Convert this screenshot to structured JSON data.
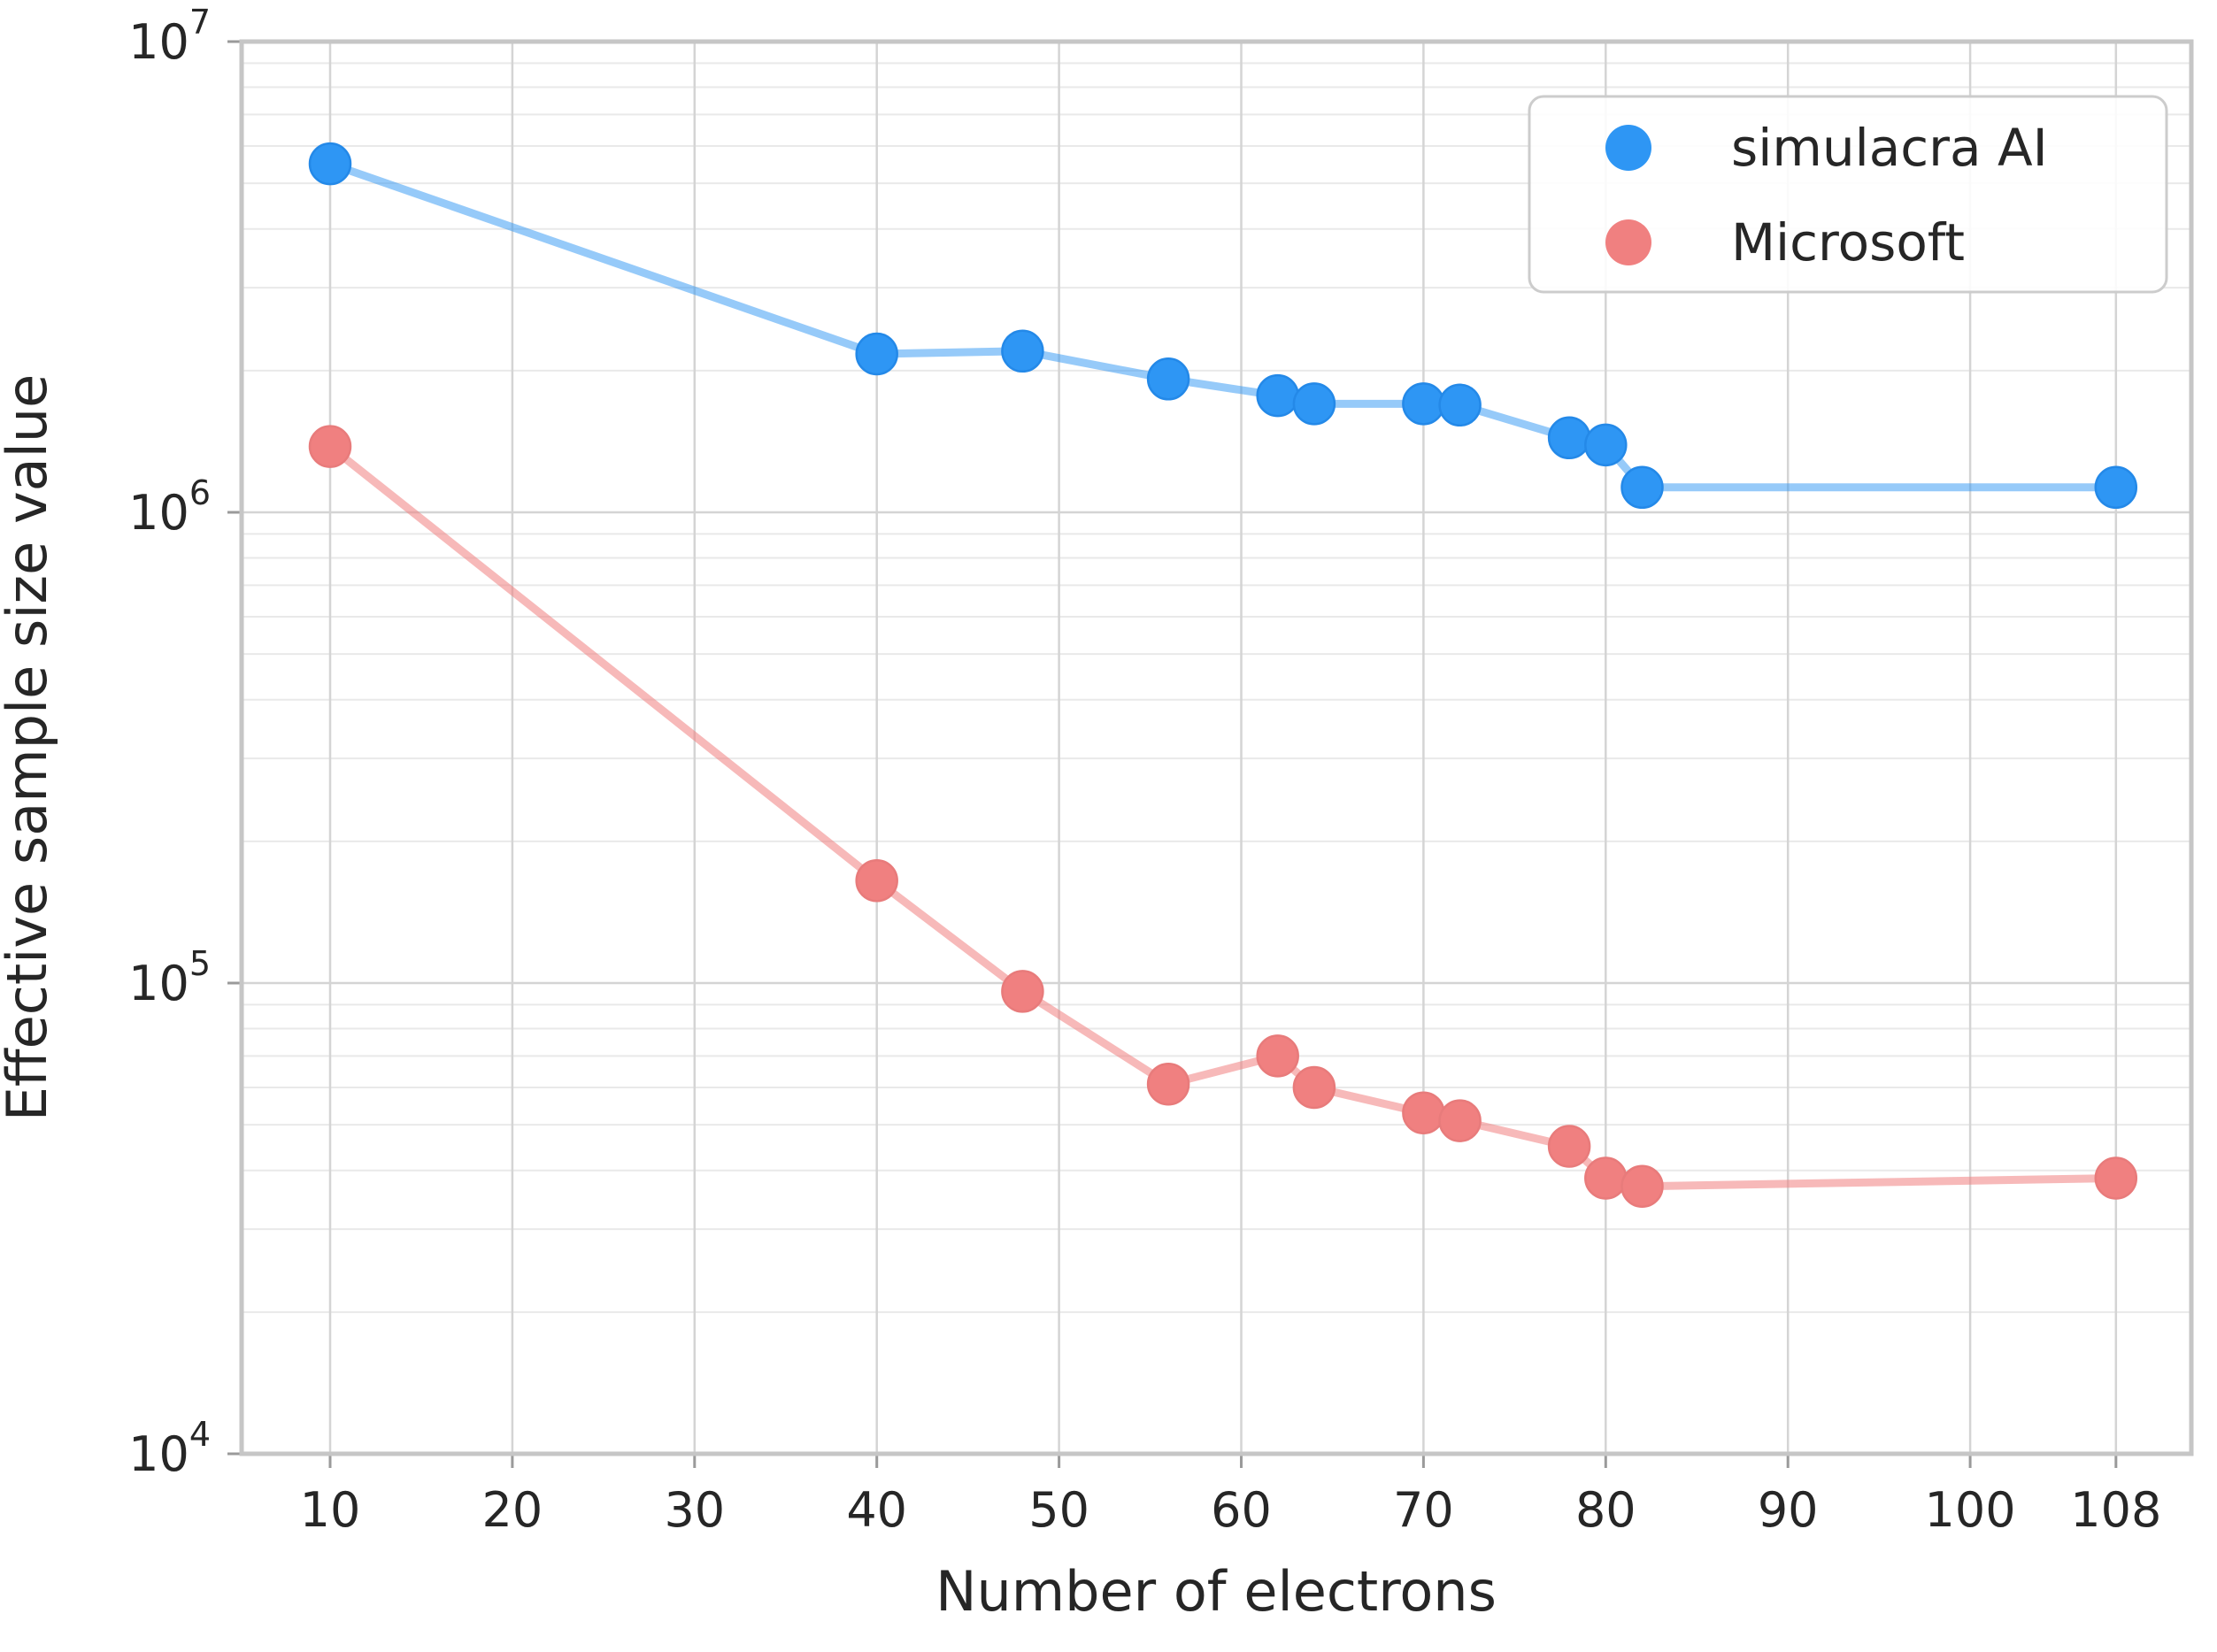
{
  "chart_data": {
    "type": "line",
    "title": "",
    "xlabel": "Number of electrons",
    "ylabel": "Effective sample size value",
    "x_scale": "linear",
    "y_scale": "log",
    "x_ticks": [
      10,
      20,
      30,
      40,
      50,
      60,
      70,
      80,
      90,
      100,
      108
    ],
    "y_tick_exponents": [
      4,
      5,
      6,
      7
    ],
    "y_tick_base": "10",
    "xlim": [
      5.1,
      112.1
    ],
    "ylim": [
      10000,
      10000000
    ],
    "grid": {
      "horizontal_major": true,
      "horizontal_minor": true,
      "vertical_major": true,
      "major_color": "#d4d4d4",
      "minor_color": "#e9e9e9",
      "spine_color": "#c6c6c6",
      "background": "#ffffff"
    },
    "legend": {
      "position": "upper right",
      "border_color": "#cccccc",
      "fill_color": "#ffffff"
    },
    "series": [
      {
        "name": "simulacra AI",
        "color": "#2E96F4",
        "edge_color": "#2489E8",
        "line_color": "rgba(46,150,244,0.5)",
        "points": [
          [
            10,
            5500000
          ],
          [
            40,
            2170000
          ],
          [
            48,
            2200000
          ],
          [
            56,
            1920000
          ],
          [
            62,
            1770000
          ],
          [
            64,
            1700000
          ],
          [
            70,
            1700000
          ],
          [
            72,
            1690000
          ],
          [
            78,
            1440000
          ],
          [
            80,
            1390000
          ],
          [
            82,
            1130000
          ],
          [
            108,
            1130000
          ]
        ]
      },
      {
        "name": "Microsoft",
        "color": "#F08080",
        "edge_color": "#E87B7B",
        "line_color": "rgba(240,128,128,0.55)",
        "points": [
          [
            10,
            1380000
          ],
          [
            40,
            165000
          ],
          [
            48,
            96000
          ],
          [
            56,
            61000
          ],
          [
            62,
            70000
          ],
          [
            64,
            60000
          ],
          [
            70,
            53000
          ],
          [
            72,
            51000
          ],
          [
            78,
            45000
          ],
          [
            80,
            38500
          ],
          [
            82,
            37000
          ],
          [
            108,
            38500
          ]
        ]
      }
    ],
    "text_color": "#262626"
  }
}
